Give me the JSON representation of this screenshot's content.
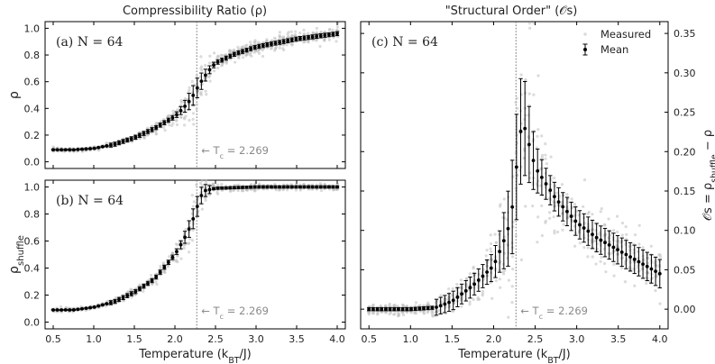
{
  "chart_data": [
    {
      "id": "a",
      "type": "scatter",
      "panel_label": "(a)  N = 64",
      "group_title": "Compressibility Ratio (ρ)",
      "xlabel": "",
      "ylabel": "ρ",
      "xlim": [
        0.4,
        4.1
      ],
      "ylim": [
        -0.05,
        1.05
      ],
      "xticks": [
        "0.5",
        "1.0",
        "1.5",
        "2.0",
        "2.5",
        "3.0",
        "3.5",
        "4.0"
      ],
      "xtick_values": [
        0.5,
        1.0,
        1.5,
        2.0,
        2.5,
        3.0,
        3.5,
        4.0
      ],
      "show_xtick_labels": false,
      "yticks": [
        "0.0",
        "0.2",
        "0.4",
        "0.6",
        "0.8",
        "1.0"
      ],
      "ytick_values": [
        0.0,
        0.2,
        0.4,
        0.6,
        0.8,
        1.0
      ],
      "tc": 2.269,
      "tc_label": "← T_c = 2.269",
      "series": [
        {
          "name": "Measured",
          "style": "gray scatter"
        },
        {
          "name": "Mean",
          "style": "black points with error bars",
          "x": [
            0.5,
            0.75,
            1.0,
            1.25,
            1.5,
            1.75,
            2.0,
            2.1,
            2.2,
            2.3,
            2.4,
            2.5,
            2.75,
            3.0,
            3.5,
            4.0
          ],
          "y": [
            0.09,
            0.09,
            0.1,
            0.13,
            0.18,
            0.25,
            0.34,
            0.4,
            0.47,
            0.58,
            0.67,
            0.74,
            0.81,
            0.86,
            0.92,
            0.96
          ]
        }
      ]
    },
    {
      "id": "b",
      "type": "scatter",
      "panel_label": "(b)  N = 64",
      "xlabel": "Temperature (k_BT/J)",
      "ylabel": "ρ_shuffle",
      "xlim": [
        0.4,
        4.1
      ],
      "ylim": [
        -0.05,
        1.05
      ],
      "xticks": [
        "0.5",
        "1.0",
        "1.5",
        "2.0",
        "2.5",
        "3.0",
        "3.5",
        "4.0"
      ],
      "xtick_values": [
        0.5,
        1.0,
        1.5,
        2.0,
        2.5,
        3.0,
        3.5,
        4.0
      ],
      "show_xtick_labels": true,
      "yticks": [
        "0.0",
        "0.2",
        "0.4",
        "0.6",
        "0.8",
        "1.0"
      ],
      "ytick_values": [
        0.0,
        0.2,
        0.4,
        0.6,
        0.8,
        1.0
      ],
      "tc": 2.269,
      "tc_label": "← T_c = 2.269",
      "series": [
        {
          "name": "Measured",
          "style": "gray scatter"
        },
        {
          "name": "Mean",
          "style": "black points with error bars",
          "x": [
            0.5,
            0.75,
            1.0,
            1.25,
            1.5,
            1.75,
            2.0,
            2.1,
            2.2,
            2.3,
            2.35,
            2.5,
            3.0,
            3.5,
            4.0
          ],
          "y": [
            0.09,
            0.09,
            0.11,
            0.15,
            0.22,
            0.32,
            0.5,
            0.6,
            0.72,
            0.9,
            0.97,
            0.99,
            1.0,
            1.0,
            1.0
          ]
        }
      ]
    },
    {
      "id": "c",
      "type": "scatter",
      "panel_label": "(c)  N = 64",
      "group_title": "\"Structural Order\" (𝒪s)",
      "xlabel": "Temperature (k_BT/J)",
      "ylabel": "𝒪s = ρ_shuffle − ρ",
      "y_axis_side": "right",
      "xlim": [
        0.4,
        4.1
      ],
      "ylim": [
        -0.025,
        0.365
      ],
      "xticks": [
        "0.5",
        "1.0",
        "1.5",
        "2.0",
        "2.5",
        "3.0",
        "3.5",
        "4.0"
      ],
      "xtick_values": [
        0.5,
        1.0,
        1.5,
        2.0,
        2.5,
        3.0,
        3.5,
        4.0
      ],
      "show_xtick_labels": true,
      "yticks": [
        "0.00",
        "0.05",
        "0.10",
        "0.15",
        "0.20",
        "0.25",
        "0.30",
        "0.35"
      ],
      "ytick_values": [
        0.0,
        0.05,
        0.1,
        0.15,
        0.2,
        0.25,
        0.3,
        0.35
      ],
      "tc": 2.269,
      "tc_label": "← T_c = 2.269",
      "legend": {
        "location": "top-right",
        "entries": [
          "Measured",
          "Mean"
        ]
      },
      "series": [
        {
          "name": "Measured",
          "style": "gray scatter"
        },
        {
          "name": "Mean",
          "style": "black points with error bars",
          "x": [
            0.5,
            1.0,
            1.3,
            1.5,
            1.75,
            2.0,
            2.1,
            2.2,
            2.25,
            2.3,
            2.35,
            2.4,
            2.5,
            2.75,
            3.0,
            3.25,
            3.5,
            3.75,
            4.0
          ],
          "y": [
            0.0,
            0.0,
            0.002,
            0.01,
            0.03,
            0.055,
            0.08,
            0.11,
            0.15,
            0.21,
            0.24,
            0.22,
            0.18,
            0.14,
            0.11,
            0.09,
            0.075,
            0.06,
            0.045
          ]
        }
      ]
    }
  ]
}
